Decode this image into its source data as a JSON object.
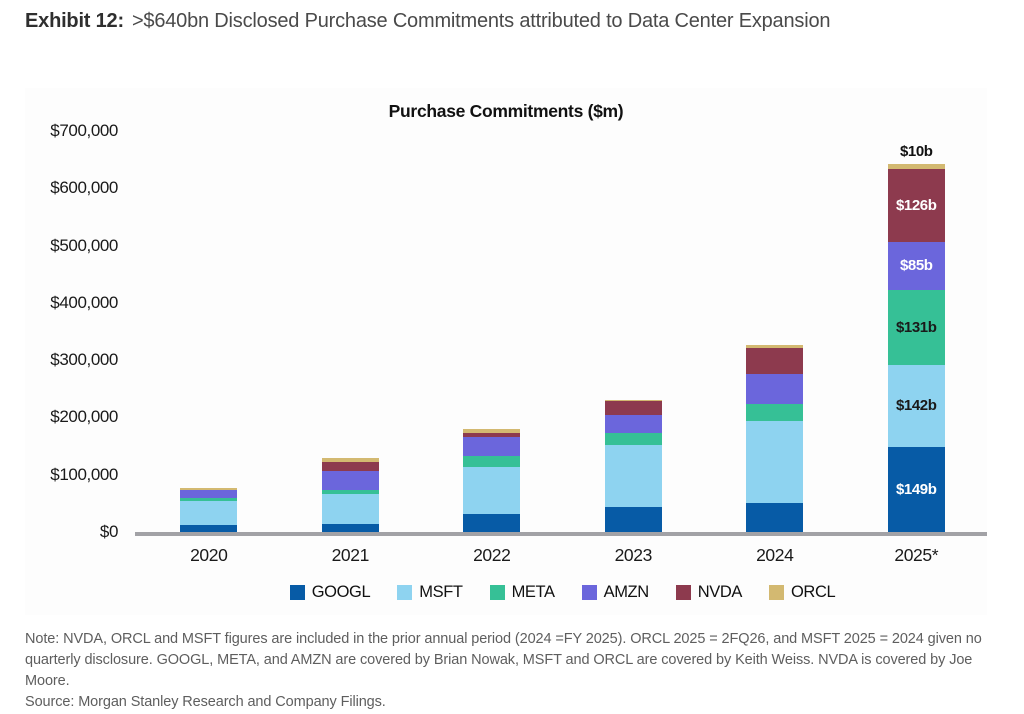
{
  "page": {
    "heading_bold": "Exhibit 12:",
    "heading_rest": ">$640bn Disclosed Purchase Commitments attributed to Data Center Expansion"
  },
  "chart_data": {
    "type": "bar",
    "stacked": true,
    "title": "Purchase Commitments ($m)",
    "xlabel": "",
    "ylabel": "",
    "categories": [
      "2020",
      "2021",
      "2022",
      "2023",
      "2024",
      "2025*"
    ],
    "series": [
      {
        "name": "GOOGL",
        "color": "#075ba6",
        "values": [
          12000,
          14000,
          31000,
          44000,
          51000,
          149000
        ]
      },
      {
        "name": "MSFT",
        "color": "#8ed3f0",
        "values": [
          42000,
          52000,
          82000,
          107000,
          142000,
          142000
        ]
      },
      {
        "name": "META",
        "color": "#36c096",
        "values": [
          5000,
          7000,
          19000,
          21000,
          31000,
          131000
        ]
      },
      {
        "name": "AMZN",
        "color": "#6b66dc",
        "values": [
          15000,
          33000,
          33000,
          33000,
          51000,
          85000
        ]
      },
      {
        "name": "NVDA",
        "color": "#8d3a4e",
        "values": [
          0,
          16000,
          8000,
          23000,
          46000,
          126000
        ]
      },
      {
        "name": "ORCL",
        "color": "#d3b971",
        "values": [
          3000,
          7000,
          7000,
          3000,
          5000,
          10000
        ]
      }
    ],
    "y_axis": {
      "min": 0,
      "max": 700000,
      "tick_step": 100000,
      "tick_labels": [
        "$0",
        "$100,000",
        "$200,000",
        "$300,000",
        "$400,000",
        "$500,000",
        "$600,000",
        "$700,000"
      ]
    },
    "last_bar_labels": [
      {
        "series": "GOOGL",
        "text": "$149b",
        "color": "#ffffff",
        "placement": "inside"
      },
      {
        "series": "MSFT",
        "text": "$142b",
        "color": "#1a1a1a",
        "placement": "inside"
      },
      {
        "series": "META",
        "text": "$131b",
        "color": "#1a1a1a",
        "placement": "inside"
      },
      {
        "series": "AMZN",
        "text": "$85b",
        "color": "#ffffff",
        "placement": "inside"
      },
      {
        "series": "NVDA",
        "text": "$126b",
        "color": "#ffffff",
        "placement": "inside"
      },
      {
        "series": "ORCL",
        "text": "$10b",
        "color": "#111111",
        "placement": "above"
      }
    ],
    "legend": [
      "GOOGL",
      "MSFT",
      "META",
      "AMZN",
      "NVDA",
      "ORCL"
    ],
    "legend_position": "bottom",
    "gridlines": false,
    "axis_color": "#a2a2a6"
  },
  "footnote": {
    "note": "Note: NVDA, ORCL and MSFT figures are included in the prior annual period (2024 =FY 2025). ORCL 2025 = 2FQ26, and MSFT 2025 = 2024 given no quarterly disclosure. GOOGL, META, and AMZN are covered by Brian Nowak, MSFT and ORCL are covered by Keith Weiss. NVDA is covered by Joe Moore.",
    "source": "Source: Morgan Stanley Research and Company Filings."
  }
}
